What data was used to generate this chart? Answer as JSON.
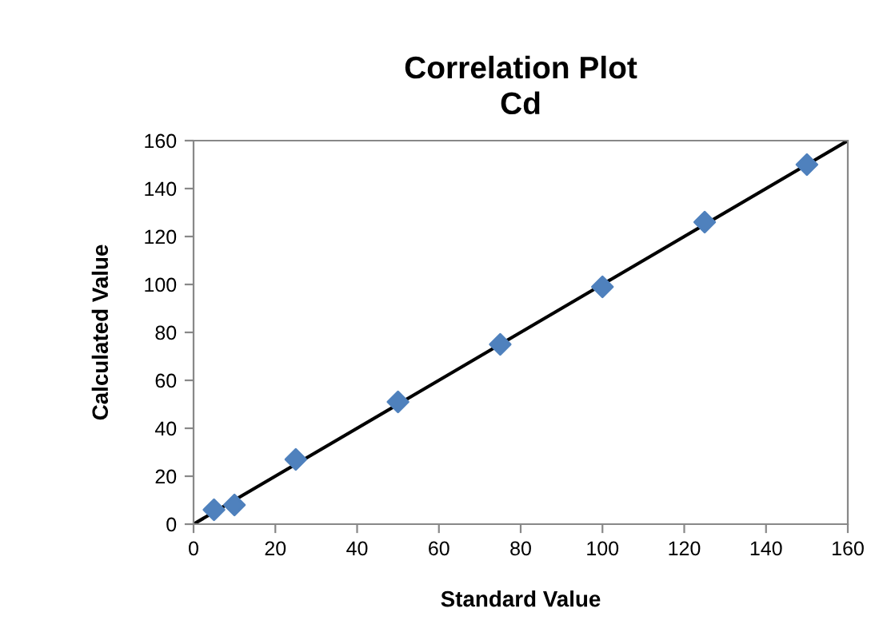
{
  "chart_data": {
    "type": "scatter",
    "title": "Correlation Plot\nCd",
    "xlabel": "Standard Value",
    "ylabel": "Calculated Value",
    "series": [
      {
        "color": "#4f81bd",
        "x": [
          5,
          10,
          25,
          50,
          75,
          100,
          125,
          150
        ],
        "values": [
          6,
          8,
          27,
          51,
          75,
          99,
          126,
          150
        ],
        "marker": "diamond"
      },
      {
        "type": "line",
        "color": "#000000",
        "x": [
          0,
          160
        ],
        "values": [
          0,
          160
        ],
        "marker": "none",
        "line_style": "solid"
      }
    ],
    "xlim": [
      0,
      160
    ],
    "ylim": [
      0,
      160
    ],
    "xticks": [
      0,
      20,
      40,
      60,
      80,
      100,
      120,
      140,
      160
    ],
    "yticks": [
      0,
      20,
      40,
      60,
      80,
      100,
      120,
      140,
      160
    ],
    "grid": false,
    "legend": false
  }
}
